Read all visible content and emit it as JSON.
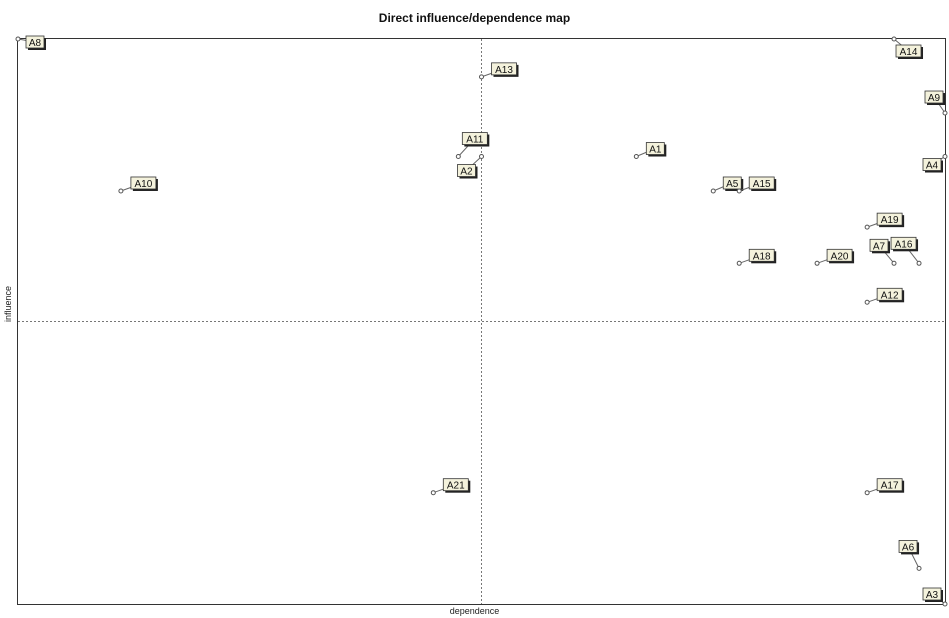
{
  "chart_data": {
    "type": "scatter",
    "title": "Direct influence/dependence map",
    "xlabel": "dependence",
    "ylabel": "influence",
    "xlim": [
      0,
      100
    ],
    "ylim": [
      0,
      100
    ],
    "points": [
      {
        "label": "A8",
        "x": 0,
        "y": 100
      },
      {
        "label": "A14",
        "x": 94.5,
        "y": 100
      },
      {
        "label": "A13",
        "x": 50,
        "y": 93.3
      },
      {
        "label": "A9",
        "x": 100,
        "y": 86.9
      },
      {
        "label": "A11",
        "x": 47.5,
        "y": 79.2
      },
      {
        "label": "A2",
        "x": 50,
        "y": 79.2
      },
      {
        "label": "A1",
        "x": 66.7,
        "y": 79.2
      },
      {
        "label": "A4",
        "x": 100,
        "y": 79.2
      },
      {
        "label": "A10",
        "x": 11.1,
        "y": 73.1
      },
      {
        "label": "A5",
        "x": 75,
        "y": 73.1
      },
      {
        "label": "A15",
        "x": 77.8,
        "y": 73.1
      },
      {
        "label": "A19",
        "x": 91.6,
        "y": 66.7
      },
      {
        "label": "A18",
        "x": 77.8,
        "y": 60.3
      },
      {
        "label": "A20",
        "x": 86.2,
        "y": 60.3
      },
      {
        "label": "A7",
        "x": 94.5,
        "y": 60.3
      },
      {
        "label": "A16",
        "x": 97.2,
        "y": 60.3
      },
      {
        "label": "A12",
        "x": 91.6,
        "y": 53.4
      },
      {
        "label": "A21",
        "x": 44.8,
        "y": 19.7
      },
      {
        "label": "A17",
        "x": 91.6,
        "y": 19.7
      },
      {
        "label": "A6",
        "x": 97.2,
        "y": 6.3
      },
      {
        "label": "A3",
        "x": 100,
        "y": 0
      }
    ],
    "reference_lines": {
      "x": 50,
      "y": 50
    },
    "grid": false
  },
  "colors": {
    "label_fill": "#f4f2dc",
    "marker": "#555555",
    "axis": "#333333"
  }
}
